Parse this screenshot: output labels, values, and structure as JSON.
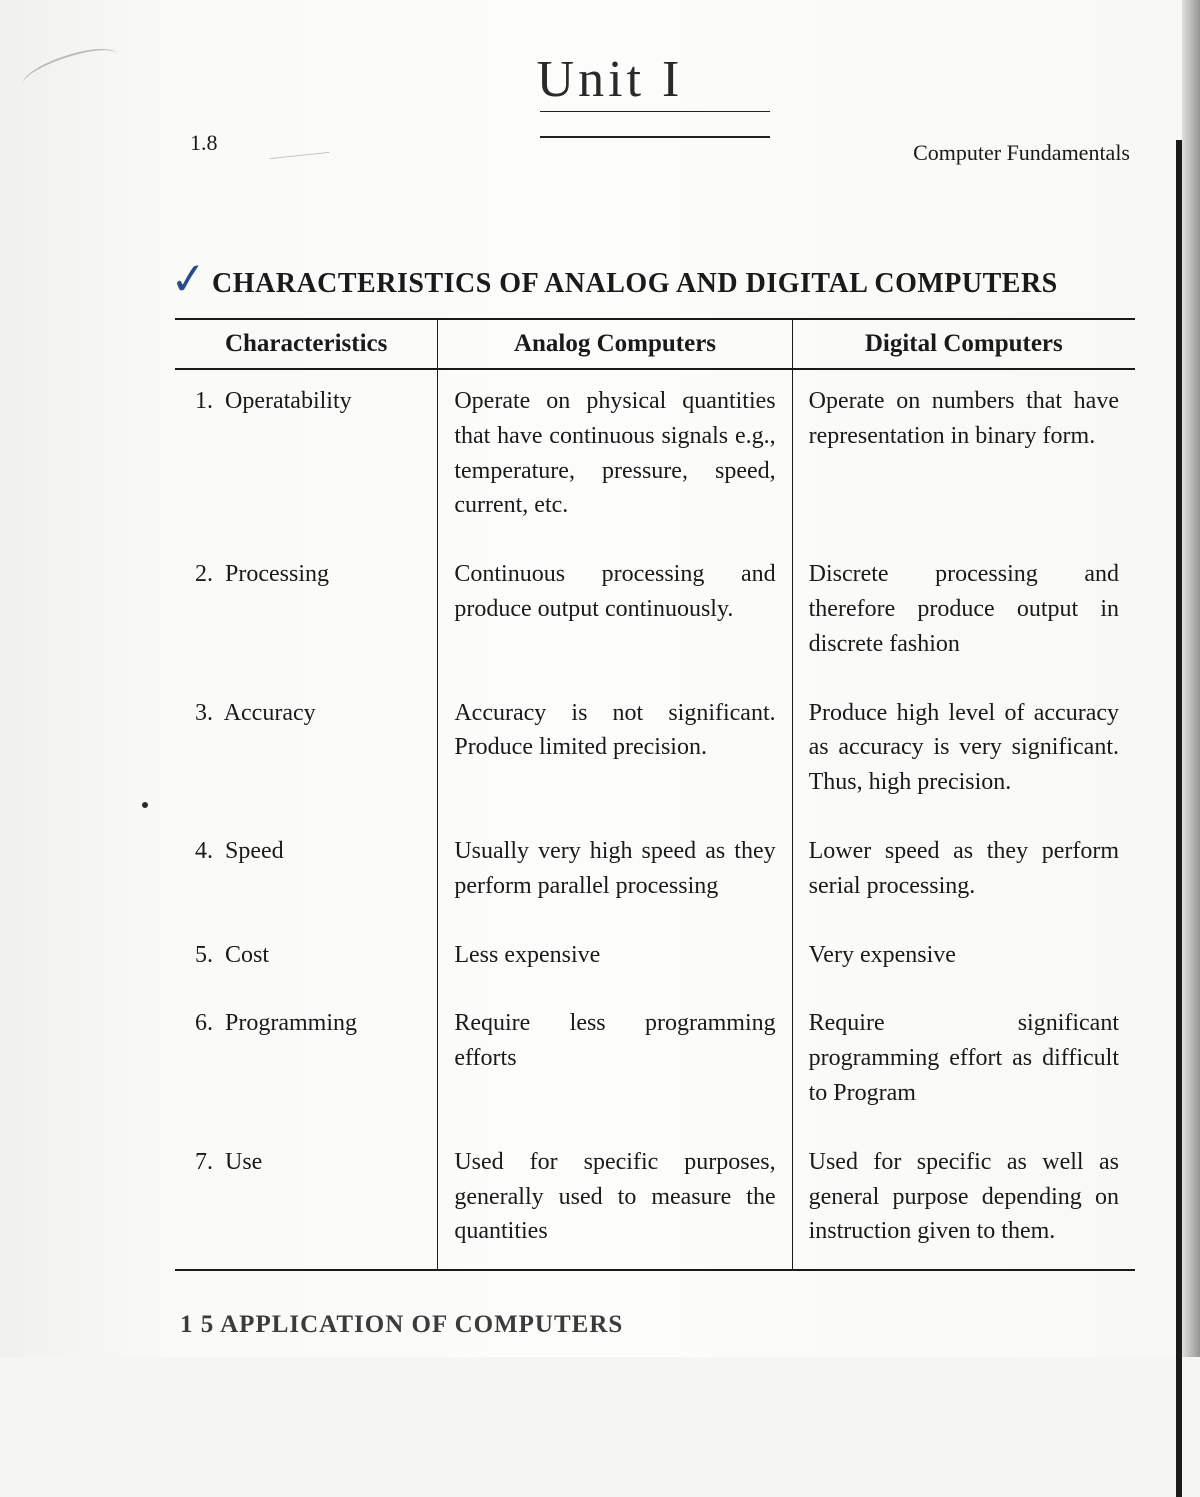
{
  "handwritten_title": "Unit I",
  "page_number": "1.8",
  "header_right": "Computer Fundamentals",
  "section_title": "CHARACTERISTICS OF ANALOG AND DIGITAL COMPUTERS",
  "checkmark": "✓",
  "table": {
    "headers": {
      "col1": "Characteristics",
      "col2": "Analog Computers",
      "col3": "Digital Computers"
    },
    "rows": [
      {
        "num": "1.",
        "label": "Operatability",
        "analog": "Operate on physical quantities that have continuous signals e.g., temperature, pressure, speed, current, etc.",
        "digital": "Operate on numbers that have representation in binary form."
      },
      {
        "num": "2.",
        "label": "Processing",
        "analog": "Continuous processing and produce output continuously.",
        "digital": "Discrete processing and therefore produce output in discrete fashion"
      },
      {
        "num": "3.",
        "label": "Accuracy",
        "analog": "Accuracy is not significant. Produce limited precision.",
        "digital": "Produce high level of accuracy as accuracy is very significant. Thus, high precision."
      },
      {
        "num": "4.",
        "label": "Speed",
        "analog": "Usually very high speed as they perform parallel processing",
        "digital": "Lower speed as they perform serial processing."
      },
      {
        "num": "5.",
        "label": "Cost",
        "analog": "Less expensive",
        "digital": "Very expensive"
      },
      {
        "num": "6.",
        "label": "Programming",
        "analog": "Require less programming efforts",
        "digital": "Require significant programming effort as difficult to Program"
      },
      {
        "num": "7.",
        "label": "Use",
        "analog": "Used for specific purposes, generally used to measure the quantities",
        "digital": "Used for specific as well as general purpose depending on instruction given to them."
      }
    ]
  },
  "cutoff_text": "1 5   APPLICATION OF COMPUTERS"
}
